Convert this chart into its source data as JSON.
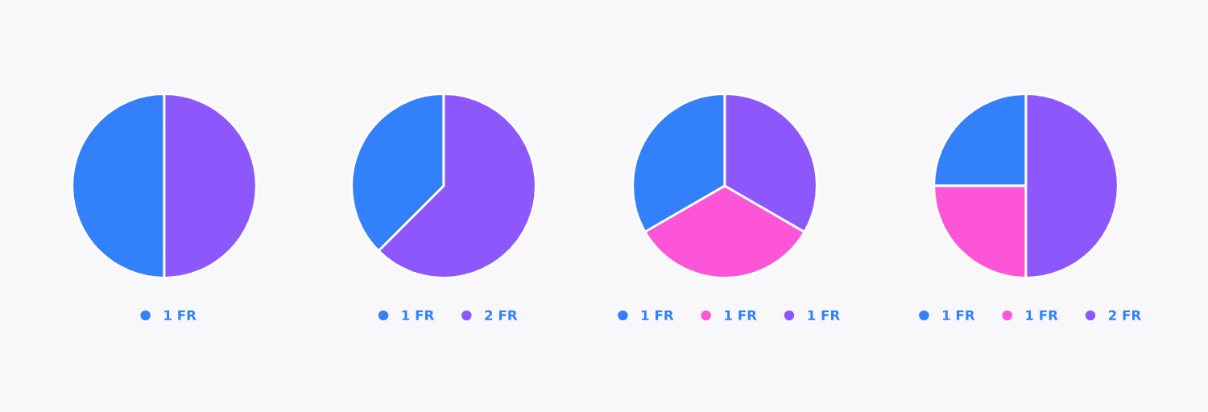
{
  "chart_data": [
    {
      "type": "pie",
      "categories": [
        "1 FR",
        null
      ],
      "values": [
        50,
        50
      ],
      "colors": [
        "#3381fa",
        "#8c58fc"
      ],
      "legend": "bottom"
    },
    {
      "type": "pie",
      "categories": [
        "1 FR",
        "2 FR"
      ],
      "values": [
        37.5,
        62.5
      ],
      "colors": [
        "#3381fa",
        "#8c58fc"
      ],
      "legend": "bottom"
    },
    {
      "type": "pie",
      "categories": [
        "1 FR",
        "1 FR",
        "1 FR"
      ],
      "values": [
        33.33,
        33.33,
        33.34
      ],
      "colors": [
        "#3381fa",
        "#fd55d8",
        "#8c58fc"
      ],
      "legend": "bottom"
    },
    {
      "type": "pie",
      "categories": [
        "1 FR",
        "1 FR",
        "2 FR"
      ],
      "values": [
        25,
        25,
        50
      ],
      "colors": [
        "#3381fa",
        "#fd55d8",
        "#8c58fc"
      ],
      "legend": "bottom"
    }
  ]
}
